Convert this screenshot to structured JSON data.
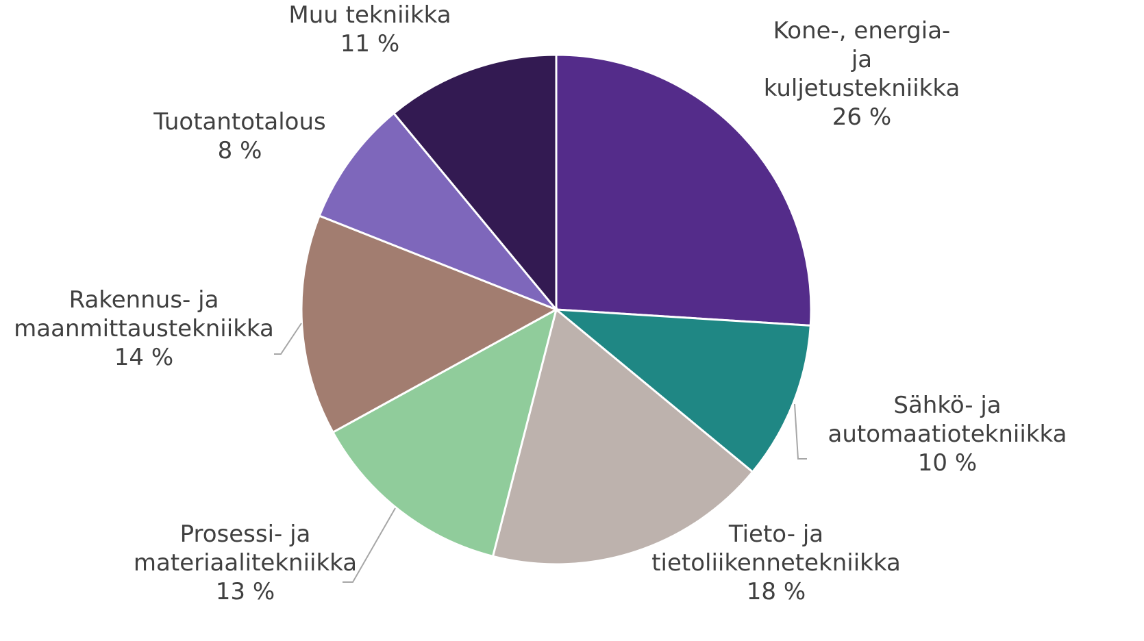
{
  "chart_data": {
    "type": "pie",
    "categories": [
      "Kone-, energia- ja kuljetustekniikka",
      "Sähkö- ja automaatiotekniikka",
      "Tieto- ja tietoliikennetekniikka",
      "Prosessi- ja materiaalitekniikka",
      "Rakennus- ja maanmittaustekniikka",
      "Tuotantotalous",
      "Muu tekniikka"
    ],
    "values": [
      26,
      10,
      18,
      13,
      14,
      8,
      11
    ],
    "value_labels": [
      "26 %",
      "10 %",
      "18 %",
      "13 %",
      "14 %",
      "8 %",
      "11 %"
    ],
    "colors": [
      "#542c8a",
      "#1f8784",
      "#bdb2ad",
      "#90cc9b",
      "#a27d70",
      "#7e67bb",
      "#331a52"
    ]
  }
}
